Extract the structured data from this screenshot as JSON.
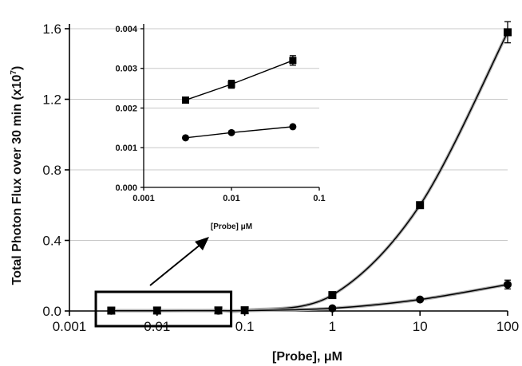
{
  "chart_data": [
    {
      "type": "scatter",
      "title": "",
      "xlabel": "[Probe], μM",
      "ylabel": "Total Photon Flux over 30 min (x10",
      "ylabel_exponent": "7",
      "ylabel_suffix": ")",
      "x_scale": "log",
      "xlim": [
        0.001,
        100
      ],
      "ylim": [
        0,
        1.6
      ],
      "x_ticks": [
        0.001,
        0.01,
        0.1,
        1,
        10,
        100
      ],
      "x_tick_labels": [
        "0.001",
        "0.01",
        "0.1",
        "1",
        "10",
        "100"
      ],
      "y_ticks": [
        0,
        0.4,
        0.8,
        1.2,
        1.6
      ],
      "y_tick_labels": [
        "0.0",
        "0.4",
        "0.8",
        "1.2",
        "1.6"
      ],
      "grid": "horizontal",
      "series": [
        {
          "marker": "square",
          "x": [
            0.003,
            0.01,
            0.05,
            0.1,
            1,
            10,
            100
          ],
          "y": [
            0.0022,
            0.0026,
            0.0032,
            0.004,
            0.09,
            0.6,
            1.58
          ],
          "error": [
            0,
            0,
            0,
            0,
            0.01,
            0.01,
            0.06
          ]
        },
        {
          "marker": "circle",
          "x": [
            0.003,
            0.01,
            0.05,
            0.1,
            1,
            10,
            100
          ],
          "y": [
            0.00125,
            0.00138,
            0.00153,
            0.002,
            0.015,
            0.065,
            0.15
          ],
          "error": [
            0,
            0,
            0,
            0,
            0.005,
            0.01,
            0.025
          ]
        }
      ],
      "annotation": {
        "highlight_box_x": [
          0.002,
          0.07
        ],
        "arrow_to": "inset"
      }
    },
    {
      "type": "scatter",
      "title": "",
      "xlabel": "[Probe] μM",
      "ylabel": "",
      "x_scale": "log",
      "xlim": [
        0.001,
        0.1
      ],
      "ylim": [
        0,
        0.004
      ],
      "x_ticks": [
        0.001,
        0.01,
        0.1
      ],
      "x_tick_labels": [
        "0.001",
        "0.01",
        "0.1"
      ],
      "y_ticks": [
        0,
        0.001,
        0.002,
        0.003,
        0.004
      ],
      "y_tick_labels": [
        "0.000",
        "0.001",
        "0.002",
        "0.003",
        "0.004"
      ],
      "grid": "horizontal",
      "series": [
        {
          "marker": "square",
          "x": [
            0.003,
            0.01,
            0.05
          ],
          "y": [
            0.0022,
            0.0026,
            0.0032
          ],
          "error": [
            0,
            0.0001,
            0.00012
          ]
        },
        {
          "marker": "circle",
          "x": [
            0.003,
            0.01,
            0.05
          ],
          "y": [
            0.00125,
            0.00138,
            0.00153
          ],
          "error": [
            0,
            0,
            0
          ]
        }
      ]
    }
  ]
}
